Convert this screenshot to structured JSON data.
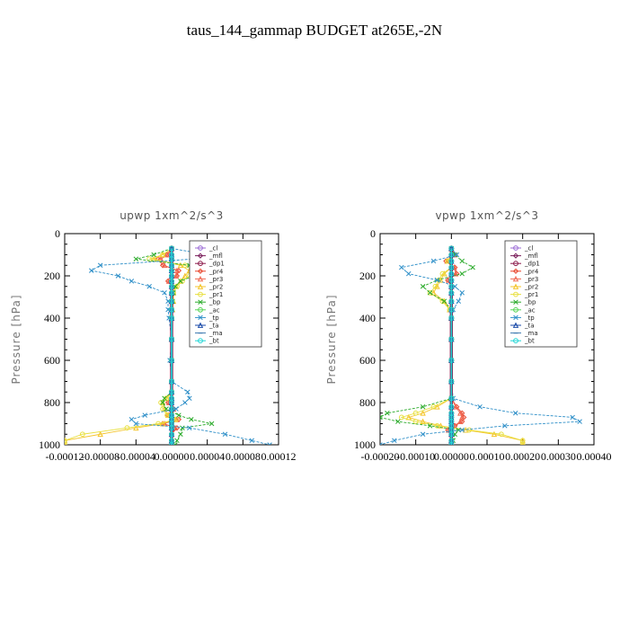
{
  "figure_title": "taus_144_gammap  BUDGET at265E,-2N",
  "chart_data": [
    {
      "type": "line",
      "title": "upwp   1xm^2/s^3",
      "ylabel": "Pressure [hPa]",
      "xlabel": "",
      "xlim": [
        -0.00012,
        0.00012
      ],
      "ylim": [
        1000,
        0
      ],
      "xticks": [
        -0.00012,
        -8e-05,
        -4e-05,
        0.0,
        4e-05,
        8e-05,
        0.00012
      ],
      "xtick_labels": [
        "-0.00012",
        "-0.00008",
        "-0.00004",
        "0.00000",
        "0.00004",
        "0.00008",
        "0.00012"
      ],
      "yticks": [
        0,
        200,
        400,
        600,
        800,
        1000
      ],
      "ytick_labels": [
        "0",
        "200",
        "400",
        "600",
        "800",
        "1000"
      ],
      "legend_position": "top-right",
      "y": [
        70,
        100,
        120,
        150,
        175,
        200,
        225,
        250,
        280,
        320,
        360,
        400,
        500,
        600,
        700,
        750,
        780,
        800,
        830,
        860,
        880,
        900,
        920,
        950,
        980,
        1000
      ],
      "series": [
        {
          "name": "_cl",
          "color": "#9b6bd6",
          "marker": "circle",
          "values": [
            0,
            0,
            0,
            0,
            0,
            0,
            0,
            0,
            0,
            0,
            0,
            0,
            0,
            0,
            0,
            0,
            0,
            0,
            0,
            0,
            0,
            0,
            0,
            0,
            0,
            0
          ]
        },
        {
          "name": "_mfl",
          "color": "#7a1f5c",
          "marker": "diamond",
          "values": [
            0,
            0,
            0,
            0,
            0,
            0,
            0,
            0,
            0,
            0,
            0,
            0,
            0,
            0,
            0,
            0,
            0,
            0,
            0,
            0,
            0,
            0,
            0,
            0,
            0,
            0
          ]
        },
        {
          "name": "_dp1",
          "color": "#8b1a4a",
          "marker": "circle",
          "values": [
            0,
            0,
            0,
            0,
            0,
            0,
            0,
            0,
            0,
            0,
            0,
            0,
            0,
            0,
            0,
            0,
            0,
            0,
            0,
            0,
            0,
            0,
            0,
            0,
            0,
            0
          ]
        },
        {
          "name": "_pr4",
          "color": "#e8452c",
          "marker": "diamond",
          "values": [
            0,
            -5e-06,
            -1.5e-05,
            -1e-05,
            8e-06,
            6e-06,
            -4e-06,
            0,
            0,
            0,
            0,
            0,
            0,
            0,
            0,
            0,
            0,
            -4e-06,
            2e-06,
            -4e-06,
            8e-06,
            -1e-05,
            6e-06,
            0,
            0,
            0
          ]
        },
        {
          "name": "_pr3",
          "color": "#f06a55",
          "marker": "triangle",
          "values": [
            0,
            -4e-06,
            -1.2e-05,
            -8e-06,
            6e-06,
            5e-06,
            -3e-06,
            0,
            0,
            0,
            0,
            0,
            0,
            0,
            0,
            0,
            0,
            -3e-06,
            2e-06,
            -3e-06,
            6e-06,
            -8e-06,
            4e-06,
            0,
            0,
            0
          ]
        },
        {
          "name": "_pr2",
          "color": "#f4c42a",
          "marker": "triangle",
          "values": [
            0,
            -1e-05,
            -2e-05,
            1e-05,
            2e-05,
            1.5e-05,
            1e-05,
            5e-06,
            2e-06,
            2e-06,
            1e-06,
            0,
            0,
            0,
            0,
            0,
            -5e-06,
            -1e-05,
            -8e-06,
            -4e-06,
            4e-06,
            -1e-05,
            -4e-05,
            -8e-05,
            -0.00012,
            -0.00012
          ]
        },
        {
          "name": "_pr1",
          "color": "#e8e040",
          "marker": "circle",
          "values": [
            0,
            -1e-05,
            -2.5e-05,
            1.5e-05,
            2.5e-05,
            2e-05,
            1.2e-05,
            6e-06,
            2e-06,
            1e-06,
            0,
            0,
            0,
            0,
            0,
            0,
            -6e-06,
            -1.2e-05,
            -1e-05,
            -5e-06,
            5e-06,
            -1.5e-05,
            -5e-05,
            -0.0001,
            -0.00012,
            -0.00012
          ]
        },
        {
          "name": "_bp",
          "color": "#2cab2c",
          "marker": "x",
          "values": [
            0,
            -2e-05,
            -4e-05,
            2e-05,
            3.5e-05,
            2.5e-05,
            1e-05,
            4e-06,
            2e-06,
            1e-06,
            0,
            0,
            0,
            0,
            0,
            0,
            -8e-06,
            -1e-05,
            -6e-06,
            8e-06,
            2.2e-05,
            4.5e-05,
            1.2e-05,
            1e-05,
            6e-06,
            4e-06
          ]
        },
        {
          "name": "_ac",
          "color": "#58d658",
          "marker": "circle",
          "values": [
            0,
            0,
            0,
            0,
            0,
            0,
            0,
            0,
            0,
            0,
            0,
            0,
            0,
            0,
            0,
            0,
            0,
            0,
            0,
            0,
            0,
            0,
            0,
            0,
            0,
            0
          ]
        },
        {
          "name": "_tp",
          "color": "#2e8fc8",
          "marker": "x",
          "values": [
            0,
            4e-05,
            2.5e-05,
            -8e-05,
            -9e-05,
            -6e-05,
            -4.5e-05,
            -2.5e-05,
            -8e-06,
            -4e-06,
            -4e-06,
            -3e-06,
            0,
            -2e-06,
            0,
            1.8e-05,
            2e-05,
            1.5e-05,
            5e-06,
            -3e-05,
            -4.5e-05,
            -4e-05,
            2e-05,
            6e-05,
            9e-05,
            0.00011
          ]
        },
        {
          "name": "_ta",
          "color": "#1a4aa8",
          "marker": "triangle",
          "values": [
            0,
            0,
            0,
            0,
            0,
            0,
            0,
            0,
            0,
            0,
            0,
            0,
            0,
            0,
            0,
            0,
            0,
            0,
            0,
            0,
            0,
            0,
            0,
            0,
            0,
            0
          ]
        },
        {
          "name": "_ma",
          "color": "#3c78b0",
          "marker": "dash",
          "values": [
            0,
            0,
            0,
            0,
            0,
            0,
            0,
            0,
            0,
            0,
            0,
            0,
            0,
            0,
            0,
            0,
            0,
            0,
            0,
            0,
            0,
            0,
            0,
            0,
            0,
            0
          ]
        },
        {
          "name": "_bt",
          "color": "#22d6d6",
          "marker": "circle",
          "values": [
            0,
            0,
            0,
            0,
            0,
            0,
            0,
            0,
            0,
            0,
            0,
            0,
            0,
            0,
            0,
            0,
            0,
            0,
            0,
            0,
            0,
            0,
            0,
            0,
            0,
            0
          ]
        }
      ]
    },
    {
      "type": "line",
      "title": "vpwp   1xm^2/s^3",
      "ylabel": "Pressure [hPa]",
      "xlabel": "",
      "xlim": [
        -0.0002,
        0.0004
      ],
      "ylim": [
        1000,
        0
      ],
      "xticks": [
        -0.0002,
        -0.0001,
        0.0,
        0.0001,
        0.0002,
        0.0003,
        0.0004
      ],
      "xtick_labels": [
        "-0.00020",
        "-0.00010",
        "0.00000",
        "0.00010",
        "0.00020",
        "0.00030",
        "0.00040"
      ],
      "yticks": [
        0,
        200,
        400,
        600,
        800,
        1000
      ],
      "ytick_labels": [
        "0",
        "200",
        "400",
        "600",
        "800",
        "1000"
      ],
      "legend_position": "top-right",
      "y": [
        70,
        100,
        130,
        160,
        190,
        220,
        250,
        280,
        320,
        360,
        400,
        500,
        600,
        700,
        780,
        820,
        850,
        870,
        890,
        910,
        930,
        950,
        980,
        1000
      ],
      "series": [
        {
          "name": "_cl",
          "color": "#9b6bd6",
          "marker": "circle",
          "values": [
            0,
            0,
            0,
            0,
            0,
            0,
            0,
            0,
            0,
            0,
            0,
            0,
            0,
            0,
            0,
            0,
            0,
            0,
            0,
            0,
            0,
            0,
            0,
            0
          ]
        },
        {
          "name": "_mfl",
          "color": "#7a1f5c",
          "marker": "diamond",
          "values": [
            0,
            0,
            0,
            0,
            0,
            0,
            0,
            0,
            0,
            0,
            0,
            0,
            0,
            0,
            0,
            0,
            0,
            0,
            0,
            0,
            0,
            0,
            0,
            0
          ]
        },
        {
          "name": "_dp1",
          "color": "#8b1a4a",
          "marker": "circle",
          "values": [
            0,
            0,
            0,
            0,
            0,
            0,
            0,
            0,
            0,
            0,
            0,
            0,
            0,
            0,
            0,
            0,
            0,
            0,
            0,
            0,
            0,
            0,
            0,
            0
          ]
        },
        {
          "name": "_pr4",
          "color": "#e8452c",
          "marker": "diamond",
          "values": [
            0,
            1e-05,
            -1.5e-05,
            1e-05,
            1.5e-05,
            -1e-05,
            0,
            0,
            0,
            0,
            0,
            0,
            0,
            0,
            0,
            1.5e-05,
            3e-05,
            3.5e-05,
            3e-05,
            1e-05,
            -1e-05,
            0,
            0,
            0
          ]
        },
        {
          "name": "_pr3",
          "color": "#f06a55",
          "marker": "triangle",
          "values": [
            0,
            8e-06,
            -1.2e-05,
            8e-06,
            1.2e-05,
            -8e-06,
            0,
            0,
            0,
            0,
            0,
            0,
            0,
            0,
            0,
            1.2e-05,
            2.5e-05,
            3e-05,
            2.5e-05,
            8e-06,
            -8e-06,
            0,
            0,
            0
          ]
        },
        {
          "name": "_pr2",
          "color": "#f4c42a",
          "marker": "triangle",
          "values": [
            0,
            0,
            -1e-05,
            0,
            -2e-05,
            -3e-05,
            -4e-05,
            -5e-05,
            -2e-05,
            -5e-06,
            0,
            0,
            0,
            0,
            0,
            -4e-05,
            -8e-05,
            -0.00012,
            -8e-05,
            -3e-05,
            4e-05,
            0.00012,
            0.0002,
            0.0002
          ]
        },
        {
          "name": "_pr1",
          "color": "#e8e040",
          "marker": "circle",
          "values": [
            0,
            0,
            -1e-05,
            0,
            -2.5e-05,
            -3.5e-05,
            -4.5e-05,
            -6e-05,
            -2.5e-05,
            -5e-06,
            0,
            0,
            0,
            0,
            0,
            -5e-05,
            -0.0001,
            -0.00014,
            -0.0001,
            -4e-05,
            5e-05,
            0.00014,
            0.0002,
            0.0002
          ]
        },
        {
          "name": "_bp",
          "color": "#2cab2c",
          "marker": "x",
          "values": [
            0,
            1e-05,
            3e-05,
            6e-05,
            3e-05,
            -4e-05,
            -8e-05,
            -6e-05,
            -2e-05,
            0,
            0,
            0,
            0,
            0,
            0,
            -8e-05,
            -0.00018,
            -0.0002,
            -0.00015,
            -6e-05,
            2e-05,
            1e-05,
            5e-06,
            0
          ]
        },
        {
          "name": "_ac",
          "color": "#58d658",
          "marker": "circle",
          "values": [
            0,
            0,
            0,
            0,
            0,
            0,
            0,
            0,
            0,
            0,
            0,
            0,
            0,
            0,
            0,
            0,
            0,
            0,
            0,
            0,
            0,
            0,
            0,
            0
          ]
        },
        {
          "name": "_tp",
          "color": "#2e8fc8",
          "marker": "x",
          "values": [
            0,
            1.5e-05,
            -5e-05,
            -0.00014,
            -0.00012,
            -4e-05,
            1e-05,
            3e-05,
            2e-05,
            5e-06,
            0,
            0,
            0,
            0,
            5e-06,
            8e-05,
            0.00018,
            0.00034,
            0.00036,
            0.00015,
            3e-05,
            -8e-05,
            -0.00016,
            -0.0002
          ]
        },
        {
          "name": "_ta",
          "color": "#1a4aa8",
          "marker": "triangle",
          "values": [
            0,
            0,
            0,
            0,
            0,
            0,
            0,
            0,
            0,
            0,
            0,
            0,
            0,
            0,
            0,
            0,
            0,
            0,
            0,
            0,
            0,
            0,
            0,
            0
          ]
        },
        {
          "name": "_ma",
          "color": "#3c78b0",
          "marker": "dash",
          "values": [
            0,
            0,
            0,
            0,
            0,
            0,
            0,
            0,
            0,
            0,
            0,
            0,
            0,
            0,
            0,
            0,
            0,
            0,
            0,
            0,
            0,
            0,
            0,
            0
          ]
        },
        {
          "name": "_bt",
          "color": "#22d6d6",
          "marker": "circle",
          "values": [
            0,
            0,
            0,
            0,
            0,
            0,
            0,
            0,
            0,
            0,
            0,
            0,
            0,
            0,
            0,
            0,
            0,
            0,
            0,
            0,
            0,
            0,
            0,
            0
          ]
        }
      ]
    }
  ]
}
